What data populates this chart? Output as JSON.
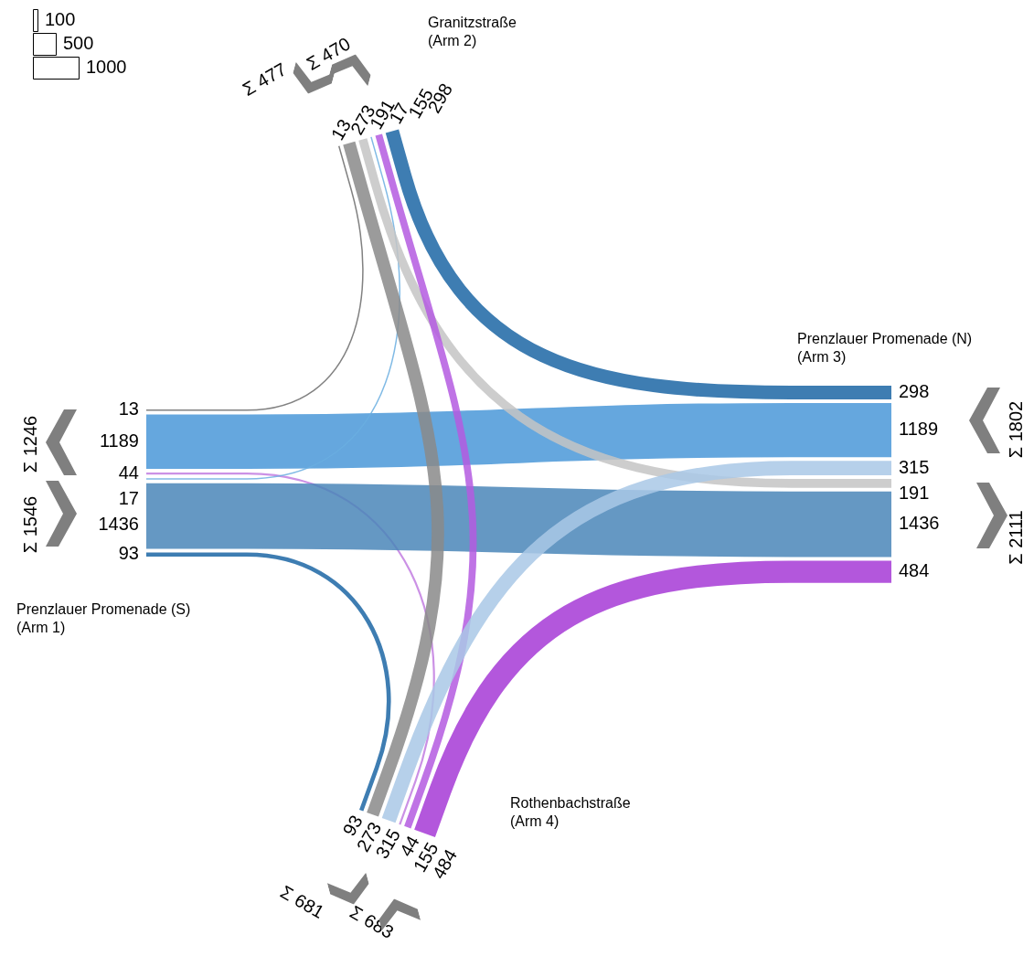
{
  "chart_data": {
    "type": "other",
    "categories": [
      "Prenzlauer Promenade (S)\n(Arm 1)",
      "Granitzstraße\n(Arm 2)",
      "Prenzlauer Promenade (N)\n(Arm 3)",
      "Rothenbachstraße\n(Arm 4)"
    ],
    "series": [
      {
        "color": "#6b6b6b",
        "values": [
          13,
          13,
          null,
          null
        ]
      },
      {
        "color": "#4a98d8",
        "values": [
          1189,
          null,
          1189,
          null
        ]
      },
      {
        "color": "#c27ee0",
        "values": [
          44,
          null,
          null,
          44
        ]
      },
      {
        "color": "#6aaee0",
        "values": [
          17,
          17,
          null,
          null
        ]
      },
      {
        "color": "#4a86b8",
        "values": [
          1436,
          null,
          1436,
          null
        ]
      },
      {
        "color": "#1c66a4",
        "values": [
          93,
          null,
          null,
          93
        ]
      },
      {
        "color": "#8a8a8a",
        "values": [
          null,
          273,
          null,
          273
        ]
      },
      {
        "color": "#c4c4c4",
        "values": [
          null,
          191,
          191,
          null
        ]
      },
      {
        "color": "#b45ae0",
        "values": [
          null,
          155,
          null,
          155
        ]
      },
      {
        "color": "#1c66a4",
        "values": [
          null,
          298,
          298,
          null
        ]
      },
      {
        "color": "#a9c8e6",
        "values": [
          null,
          null,
          315,
          315
        ]
      },
      {
        "color": "#a63ad6",
        "values": [
          null,
          null,
          484,
          484
        ]
      }
    ],
    "data_labels": true,
    "annotations": [
      "Σ 1246",
      "Σ 1546",
      "Σ 477",
      "Σ 470",
      "Σ 1802",
      "Σ 2111",
      "Σ 681",
      "Σ 683",
      "100",
      "500",
      "1000"
    ]
  }
}
